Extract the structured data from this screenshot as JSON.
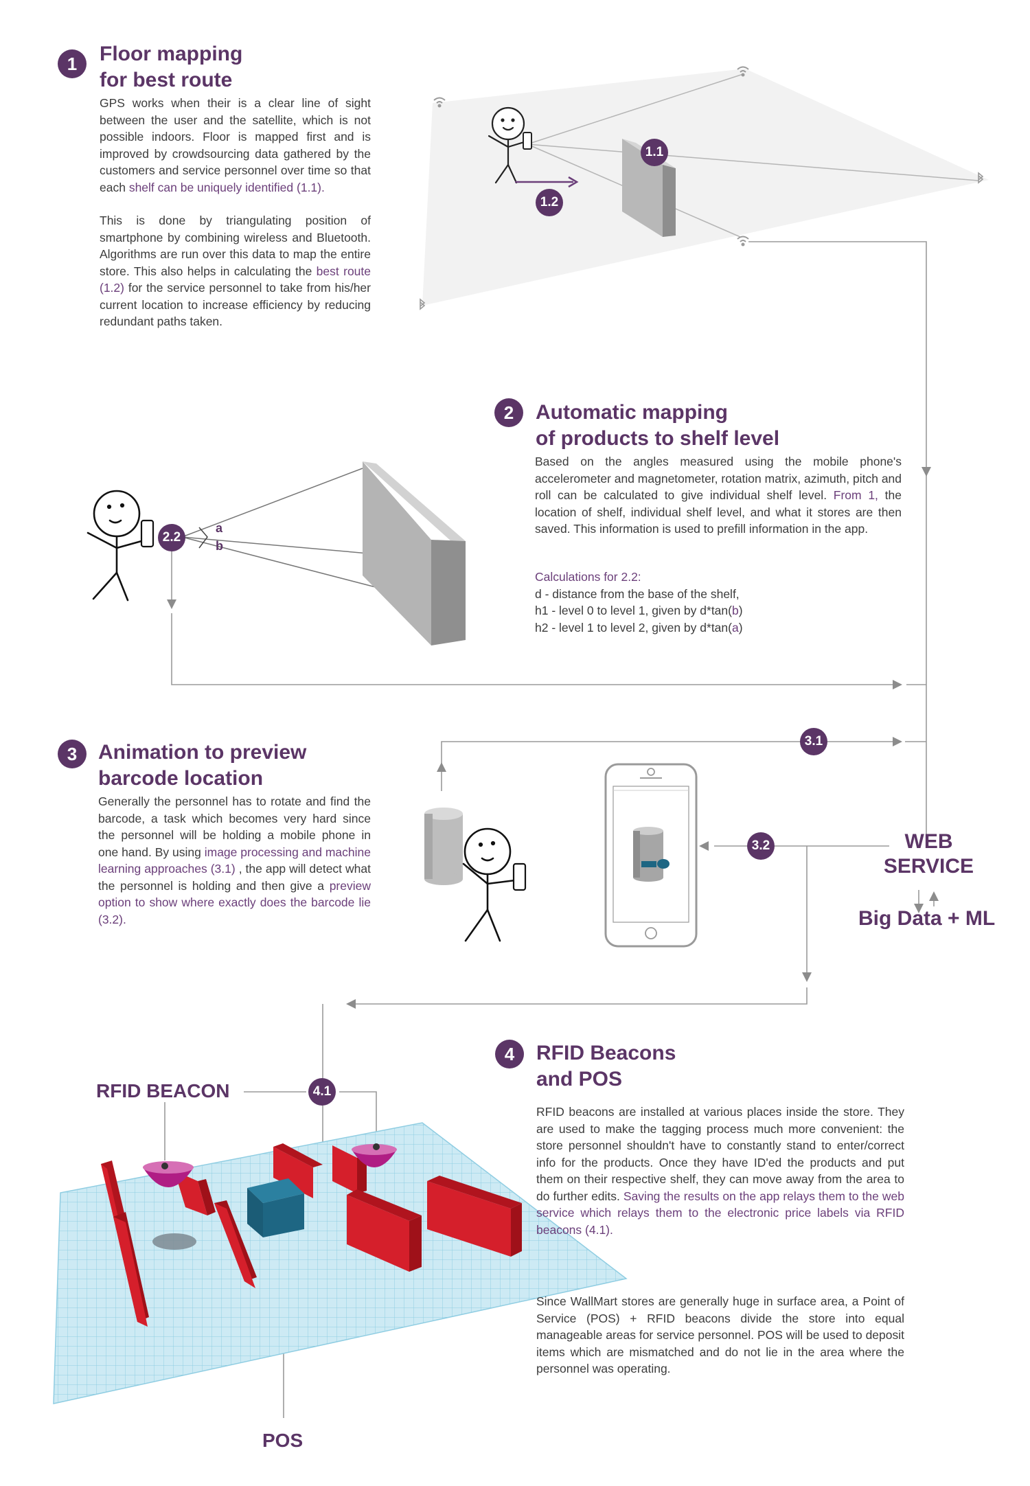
{
  "colors": {
    "accent": "#5b3566",
    "highlight": "#6b3f7a",
    "flow_line": "#9a9a9a",
    "shelf_grey": "#a9a9a9",
    "rfid_red": "#d51f2b",
    "rfid_cyan": "#bfe6f2",
    "box_teal": "#1e6683",
    "beacon_magenta": "#b01d84"
  },
  "section1": {
    "number": "1",
    "title_line1": "Floor mapping",
    "title_line2": "for best route",
    "p1_a": "GPS works when their is a clear line of sight between the user and the satellite, which is not possible indoors. Floor is mapped first and is improved by crowdsourcing data gathered by the customers and service personnel over time so that each ",
    "p1_hl": "shelf can be uniquely identified (1.1).",
    "p2_a": "This is done by triangulating position of smartphone by combining wireless and Bluetooth. Algorithms are run over this data to map the entire store. This also helps in calculating the ",
    "p2_hl": "best route (1.2)",
    "p2_b": " for the service personnel to take from his/her current location to increase efficiency by reducing redundant paths taken.",
    "badge_11": "1.1",
    "badge_12": "1.2"
  },
  "section2": {
    "number": "2",
    "title_line1": "Automatic mapping",
    "title_line2": "of products to shelf level",
    "p1_a": "Based on the angles measured using the mobile phone's accelerometer and magnetometer, rotation matrix, azimuth, pitch and roll can be calculated to give individual shelf level. ",
    "p1_hl": "From 1,",
    "p1_b": " the location of shelf, individual shelf level, and what it stores are then saved. This information is used to prefill information in the app.",
    "calc_title": "Calculations for 2.2:",
    "calc_d": "d - distance from the base of the shelf,",
    "calc_h1_a": "h1 - level 0 to level 1, given by d*tan(",
    "calc_h1_b": "b",
    "calc_h1_c": ")",
    "calc_h2_a": "h2 - level 1 to level 2,  given by d*tan(",
    "calc_h2_b": "a",
    "calc_h2_c": ")",
    "badge_22": "2.2",
    "angle_a": "a",
    "angle_b": "b"
  },
  "section3": {
    "number": "3",
    "title_line1": "Animation to preview",
    "title_line2": "barcode location",
    "p_a": "Generally the personnel has to rotate and find the barcode, a task which becomes very hard since the personnel will be holding a mobile phone in one hand.  By using ",
    "p_hl1": "image processing and machine learning approaches (3.1)",
    "p_b": " , the app will detect what the personnel is holding and then give a ",
    "p_hl2": "preview option to show where exactly does the barcode lie (3.2).",
    "badge_31": "3.1",
    "badge_32": "3.2"
  },
  "web_service": {
    "line1": "WEB",
    "line2": "SERVICE",
    "sub": "Big Data + ML"
  },
  "section4": {
    "number": "4",
    "title_line1": "RFID Beacons",
    "title_line2": "and POS",
    "p1_a": "RFID beacons are installed at various places inside the store. They are used to make the tagging process much more convenient: the store personnel shouldn't have to constantly stand to enter/correct info for the products.  Once they have ID'ed the products and put them on their respective shelf, they can move away from the area to do further edits.  ",
    "p1_hl": "Saving the results on the app relays them to the web service which relays them to the electronic price labels via RFID beacons (4.1).",
    "p2": "Since WallMart stores are generally huge in surface area, a Point of Service (POS) + RFID beacons divide the store into equal manageable areas for service personnel. POS will be used to deposit items which are mismatched and do not lie in the area where the personnel was operating.",
    "badge_41": "4.1",
    "label_beacon": "RFID BEACON",
    "label_pos": "POS"
  }
}
